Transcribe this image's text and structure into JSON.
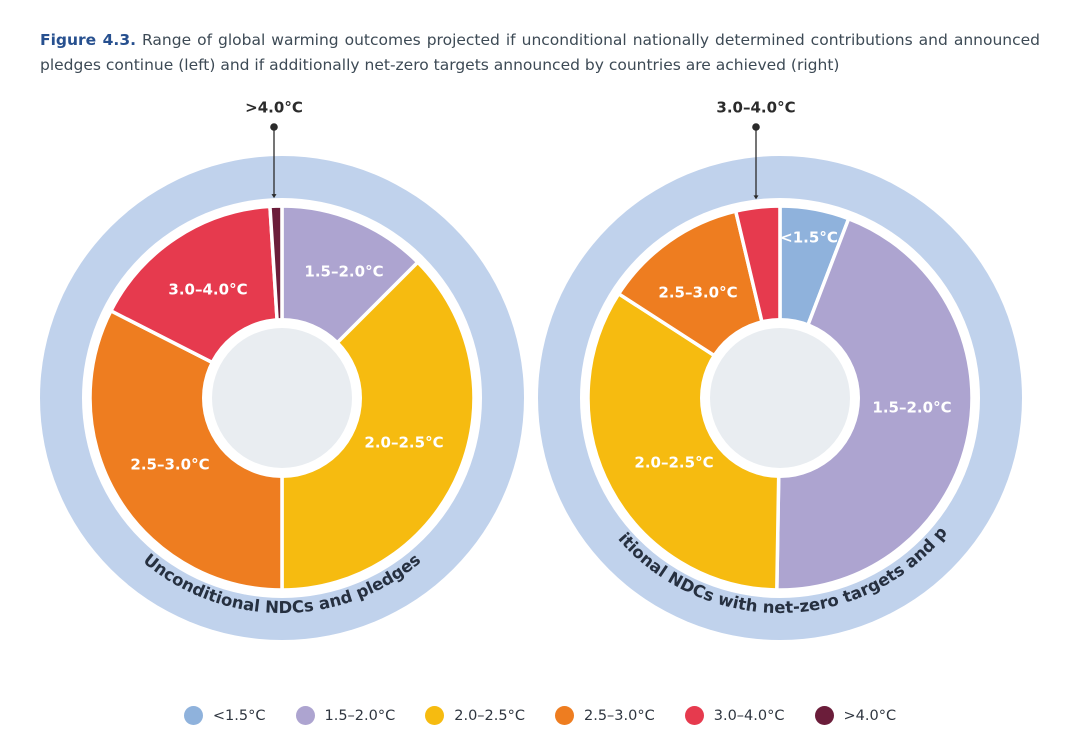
{
  "caption": {
    "label": "Figure 4.3.",
    "text": "Range of global warming outcomes projected if unconditional nationally determined contributions and announced pledges continue (left) and if additionally net-zero targets announced by countries are achieved (right)"
  },
  "colors": {
    "ring": "#c0d2ec",
    "hub": "#e9edf1",
    "lt_1_5": "#8fb2dc",
    "c1_5_2_0": "#ada4d0",
    "c2_0_2_5": "#f6bb10",
    "c2_5_3_0": "#ee7d20",
    "c3_0_4_0": "#e63a4e",
    "gt_4_0": "#6b1d3a"
  },
  "legend": [
    {
      "label": "<1.5°C",
      "color": "#8fb2dc"
    },
    {
      "label": "1.5–2.0°C",
      "color": "#ada4d0"
    },
    {
      "label": "2.0–2.5°C",
      "color": "#f6bb10"
    },
    {
      "label": "2.5–3.0°C",
      "color": "#ee7d20"
    },
    {
      "label": "3.0–4.0°C",
      "color": "#e63a4e"
    },
    {
      "label": ">4.0°C",
      "color": "#6b1d3a"
    }
  ],
  "chart_data": [
    {
      "type": "pie",
      "title": "Unconditional NDCs and pledges",
      "callout": ">4.0°C",
      "unit": "percent of projected outcomes (approx.)",
      "slices": [
        {
          "label": "1.5–2.0°C",
          "value": 12.5,
          "color": "#ada4d0",
          "show_label": true
        },
        {
          "label": "2.0–2.5°C",
          "value": 37.5,
          "color": "#f6bb10",
          "show_label": true
        },
        {
          "label": "2.5–3.0°C",
          "value": 32.5,
          "color": "#ee7d20",
          "show_label": true
        },
        {
          "label": "3.0–4.0°C",
          "value": 16.5,
          "color": "#e63a4e",
          "show_label": true
        },
        {
          "label": ">4.0°C",
          "value": 1.0,
          "color": "#6b1d3a",
          "show_label": false
        }
      ]
    },
    {
      "type": "pie",
      "title": "Unconditional NDCs with net-zero targets and pledges",
      "callout": "3.0–4.0°C",
      "unit": "percent of projected outcomes (approx.)",
      "slices": [
        {
          "label": "<1.5°C",
          "value": 5.5,
          "color": "#8fb2dc",
          "show_label": true
        },
        {
          "label": "1.5–2.0°C",
          "value": 42.0,
          "color": "#ada4d0",
          "show_label": true
        },
        {
          "label": "2.0–2.5°C",
          "value": 32.0,
          "color": "#f6bb10",
          "show_label": true
        },
        {
          "label": "2.5–3.0°C",
          "value": 11.5,
          "color": "#ee7d20",
          "show_label": true
        },
        {
          "label": "3.0–4.0°C",
          "value": 3.5,
          "color": "#e63a4e",
          "show_label": false
        }
      ]
    }
  ]
}
